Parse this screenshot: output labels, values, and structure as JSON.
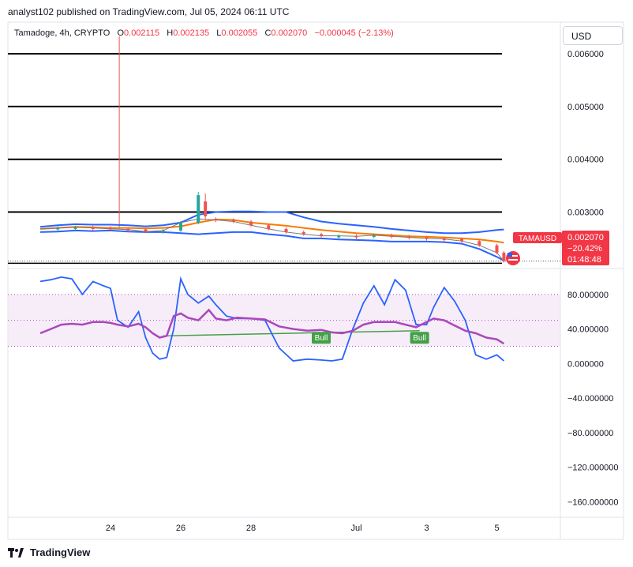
{
  "header": {
    "publisher": "analyst102 published on TradingView.com, Jul 05, 2024 06:11 UTC"
  },
  "symbol": {
    "name": "Tamadoge, 4h, CRYPTO",
    "o_label": "O",
    "o_value": "0.002115",
    "h_label": "H",
    "h_value": "0.002135",
    "l_label": "L",
    "l_value": "0.002055",
    "c_label": "C",
    "c_value": "0.002070",
    "change": "−0.000045 (−2.13%)"
  },
  "currency": "USD",
  "price_tag": {
    "ticker": "TAMAUSD",
    "price": "0.002070",
    "change_pct": "−20.42%",
    "countdown": "01:48:48"
  },
  "footer": {
    "brand": "TradingView"
  },
  "colors": {
    "up": "#26a69a",
    "down": "#ef5350",
    "bb_line": "#2962ff",
    "bb_mid": "#f57c00",
    "stoch_k": "#2962ff",
    "stoch_d": "#ab47bc",
    "price_tag_bg": "#f23645",
    "bull_label": "#43a047"
  },
  "chart_data": [
    {
      "type": "line",
      "title": "Tamadoge, 4h, CRYPTO",
      "x_ticks": [
        "24",
        "26",
        "28",
        "Jul",
        "3",
        "5"
      ],
      "y_ticks": [
        "0.006000",
        "0.005000",
        "0.004000",
        "0.003000"
      ],
      "ylim": [
        0.00193,
        0.0066
      ],
      "horizontal_levels": [
        0.006,
        0.005,
        0.004,
        0.003,
        0.00203
      ],
      "spike": {
        "x": 24.25,
        "high": 0.00633
      },
      "series": [
        {
          "role": "upper_band",
          "x": [
            22.0,
            22.5,
            23.0,
            23.5,
            24.0,
            24.5,
            25.0,
            25.5,
            26.0,
            26.5,
            27.0,
            27.5,
            28.0,
            28.5,
            29.0,
            29.5,
            30.0,
            30.5,
            31.0,
            31.5,
            32.0,
            32.5,
            33.0,
            33.5,
            34.0,
            34.5,
            35.0,
            35.2
          ],
          "y": [
            0.00272,
            0.00275,
            0.00277,
            0.00276,
            0.00276,
            0.00275,
            0.00273,
            0.00275,
            0.0028,
            0.00295,
            0.003,
            0.00301,
            0.00301,
            0.003,
            0.003,
            0.0029,
            0.00282,
            0.00278,
            0.00275,
            0.00272,
            0.00268,
            0.00265,
            0.00262,
            0.0026,
            0.0026,
            0.00262,
            0.00266,
            0.00267
          ]
        },
        {
          "role": "basis",
          "x": [
            22.0,
            22.5,
            23.0,
            23.5,
            24.0,
            24.5,
            25.0,
            25.5,
            26.0,
            26.5,
            27.0,
            27.5,
            28.0,
            28.5,
            29.0,
            29.5,
            30.0,
            30.5,
            31.0,
            31.5,
            32.0,
            32.5,
            33.0,
            33.5,
            34.0,
            34.5,
            35.0,
            35.2
          ],
          "y": [
            0.00268,
            0.0027,
            0.00272,
            0.00271,
            0.0027,
            0.0027,
            0.00269,
            0.0027,
            0.00273,
            0.0028,
            0.00286,
            0.00285,
            0.0028,
            0.00277,
            0.00274,
            0.0027,
            0.00266,
            0.00263,
            0.0026,
            0.00258,
            0.00256,
            0.00254,
            0.00253,
            0.00252,
            0.0025,
            0.00248,
            0.00244,
            0.00242
          ]
        },
        {
          "role": "lower_band",
          "x": [
            22.0,
            22.5,
            23.0,
            23.5,
            24.0,
            24.5,
            25.0,
            25.5,
            26.0,
            26.5,
            27.0,
            27.5,
            28.0,
            28.5,
            29.0,
            29.5,
            30.0,
            30.5,
            31.0,
            31.5,
            32.0,
            32.5,
            33.0,
            33.5,
            34.0,
            34.5,
            35.0,
            35.2
          ],
          "y": [
            0.00262,
            0.00263,
            0.00265,
            0.00264,
            0.00265,
            0.00263,
            0.00262,
            0.00262,
            0.0026,
            0.00258,
            0.0026,
            0.00262,
            0.00262,
            0.00258,
            0.00255,
            0.0025,
            0.0025,
            0.00248,
            0.00247,
            0.00246,
            0.00244,
            0.00244,
            0.00244,
            0.00243,
            0.0024,
            0.0023,
            0.00215,
            0.00208
          ]
        },
        {
          "role": "close",
          "x": [
            22.0,
            22.5,
            23.0,
            23.5,
            24.0,
            24.5,
            25.0,
            25.5,
            26.0,
            26.5,
            27.0,
            27.5,
            28.0,
            28.5,
            29.0,
            29.5,
            30.0,
            30.5,
            31.0,
            31.5,
            32.0,
            32.5,
            33.0,
            33.5,
            34.0,
            34.5,
            35.0,
            35.2
          ],
          "y": [
            0.00268,
            0.0027,
            0.00271,
            0.0027,
            0.00268,
            0.00267,
            0.00263,
            0.00265,
            0.0028,
            0.00287,
            0.00285,
            0.00282,
            0.00275,
            0.00268,
            0.00262,
            0.00258,
            0.00255,
            0.00255,
            0.00254,
            0.00256,
            0.00254,
            0.00252,
            0.0025,
            0.00249,
            0.00245,
            0.00237,
            0.00223,
            0.00207
          ]
        }
      ]
    },
    {
      "type": "line",
      "x_ticks": [
        "24",
        "26",
        "28",
        "Jul",
        "3",
        "5"
      ],
      "y_ticks": [
        "80.000000",
        "40.000000",
        "0.000000",
        "−40.000000",
        "−80.000000",
        "−120.000000",
        "−160.000000"
      ],
      "ylim": [
        -178,
        110
      ],
      "band": [
        20,
        80
      ],
      "annotations": [
        "Bull",
        "Bull"
      ],
      "series": [
        {
          "role": "%K",
          "x": [
            22.0,
            22.3,
            22.6,
            22.9,
            23.2,
            23.5,
            23.8,
            24.0,
            24.2,
            24.5,
            24.8,
            25.0,
            25.2,
            25.4,
            25.6,
            25.8,
            26.0,
            26.2,
            26.5,
            26.8,
            27.0,
            27.3,
            27.6,
            28.0,
            28.4,
            28.8,
            29.2,
            29.6,
            30.0,
            30.3,
            30.6,
            30.9,
            31.2,
            31.5,
            31.8,
            32.1,
            32.4,
            32.7,
            33.0,
            33.2,
            33.5,
            33.8,
            34.1,
            34.4,
            34.7,
            35.0,
            35.2
          ],
          "y": [
            95,
            97,
            100,
            98,
            80,
            95,
            90,
            87,
            50,
            42,
            60,
            30,
            12,
            5,
            7,
            40,
            98,
            80,
            70,
            78,
            68,
            55,
            52,
            52,
            50,
            18,
            3,
            5,
            4,
            3,
            5,
            40,
            70,
            90,
            68,
            97,
            85,
            45,
            45,
            65,
            88,
            72,
            50,
            10,
            5,
            10,
            3
          ]
        },
        {
          "role": "%D",
          "x": [
            22.0,
            22.3,
            22.6,
            22.9,
            23.2,
            23.5,
            23.8,
            24.0,
            24.2,
            24.5,
            24.8,
            25.0,
            25.2,
            25.4,
            25.6,
            25.8,
            26.0,
            26.2,
            26.5,
            26.8,
            27.0,
            27.3,
            27.6,
            28.0,
            28.4,
            28.8,
            29.2,
            29.6,
            30.0,
            30.3,
            30.6,
            30.9,
            31.2,
            31.5,
            31.8,
            32.1,
            32.4,
            32.7,
            33.0,
            33.2,
            33.5,
            33.8,
            34.1,
            34.4,
            34.7,
            35.0,
            35.2
          ],
          "y": [
            35,
            40,
            45,
            46,
            45,
            48,
            48,
            47,
            45,
            43,
            46,
            42,
            35,
            30,
            32,
            55,
            58,
            53,
            50,
            62,
            52,
            50,
            53,
            52,
            51,
            43,
            40,
            38,
            39,
            36,
            35,
            38,
            45,
            48,
            48,
            48,
            45,
            42,
            48,
            52,
            50,
            44,
            38,
            35,
            30,
            28,
            23
          ]
        }
      ]
    }
  ]
}
